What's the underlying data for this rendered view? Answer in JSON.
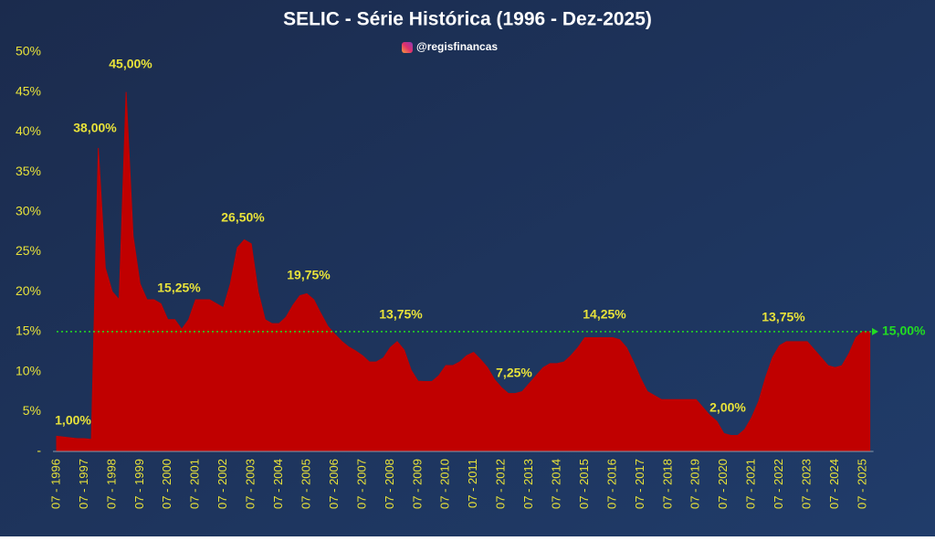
{
  "chart_data": {
    "type": "area",
    "title": "SELIC - Série Histórica (1996 - Dez-2025)",
    "subtitle": "@regisfinancas",
    "categories": [
      "07 - 1996",
      null,
      null,
      null,
      "07 - 1997",
      null,
      null,
      null,
      "07 - 1998",
      null,
      null,
      null,
      "07 - 1999",
      null,
      null,
      null,
      "07 - 2000",
      null,
      null,
      null,
      "07 - 2001",
      null,
      null,
      null,
      "07 - 2002",
      null,
      null,
      null,
      "07 - 2003",
      null,
      null,
      null,
      "07 - 2004",
      null,
      null,
      null,
      "07 - 2005",
      null,
      null,
      null,
      "07 - 2006",
      null,
      null,
      null,
      "07 - 2007",
      null,
      null,
      null,
      "07 - 2008",
      null,
      null,
      null,
      "07 - 2009",
      null,
      null,
      null,
      "07 - 2010",
      null,
      null,
      null,
      "07 - 2011",
      null,
      null,
      null,
      "07 - 2012",
      null,
      null,
      null,
      "07 - 2013",
      null,
      null,
      null,
      "07 - 2014",
      null,
      null,
      null,
      "07 - 2015",
      null,
      null,
      null,
      "07 - 2016",
      null,
      null,
      null,
      "07 - 2017",
      null,
      null,
      null,
      "07 - 2018",
      null,
      null,
      null,
      "07 - 2019",
      null,
      null,
      null,
      "07 - 2020",
      null,
      null,
      null,
      "07 - 2021",
      null,
      null,
      null,
      "07 - 2022",
      null,
      null,
      null,
      "07 - 2023",
      null,
      null,
      null,
      "07 - 2024",
      null,
      null,
      null,
      "07 - 2025",
      null
    ],
    "values": [
      1.9,
      1.8,
      1.7,
      1.6,
      1.6,
      1.5,
      38,
      23,
      20,
      19,
      45,
      27,
      21,
      19,
      19,
      18.5,
      16.5,
      16.5,
      15.3,
      16.5,
      19,
      19,
      19,
      18.5,
      18,
      21,
      25.5,
      26.5,
      26,
      20,
      16.5,
      16,
      16,
      16.8,
      18.3,
      19.5,
      19.75,
      19,
      17.3,
      15.7,
      14.7,
      13.8,
      13.1,
      12.6,
      12,
      11.2,
      11.2,
      11.7,
      13,
      13.75,
      12.7,
      10.2,
      8.8,
      8.75,
      8.75,
      9.5,
      10.75,
      10.75,
      11.2,
      12,
      12.4,
      11.5,
      10.5,
      9,
      8,
      7.25,
      7.25,
      7.5,
      8.5,
      9.5,
      10.5,
      11,
      11,
      11.2,
      12,
      13,
      14.25,
      14.25,
      14.25,
      14.25,
      14.25,
      14,
      13,
      11.2,
      9.2,
      7.5,
      7,
      6.5,
      6.5,
      6.5,
      6.5,
      6.5,
      6.5,
      5.5,
      4.5,
      3.75,
      2.25,
      2,
      2,
      2.75,
      4.25,
      6.25,
      9.25,
      11.75,
      13.25,
      13.75,
      13.75,
      13.75,
      13.75,
      12.75,
      11.75,
      10.75,
      10.5,
      10.75,
      12.25,
      14.25,
      15,
      15
    ],
    "color": "#c00000",
    "ylim": [
      0,
      50
    ],
    "yticks": [
      {
        "value": 0,
        "label": "-"
      },
      {
        "value": 5,
        "label": "5%"
      },
      {
        "value": 10,
        "label": "10%"
      },
      {
        "value": 15,
        "label": "15%"
      },
      {
        "value": 20,
        "label": "20%"
      },
      {
        "value": 25,
        "label": "25%"
      },
      {
        "value": 30,
        "label": "30%"
      },
      {
        "value": 35,
        "label": "35%"
      },
      {
        "value": 40,
        "label": "40%"
      },
      {
        "value": 45,
        "label": "45%"
      },
      {
        "value": 50,
        "label": "50%"
      }
    ],
    "reference_line": {
      "value": 15,
      "label": "15,00%",
      "color": "#22dd22"
    },
    "annotations": [
      "1,00%",
      "38,00%",
      "45,00%",
      "15,25%",
      "26,50%",
      "19,75%",
      "13,75%",
      "7,25%",
      "14,25%",
      "2,00%",
      "13,75%"
    ]
  }
}
